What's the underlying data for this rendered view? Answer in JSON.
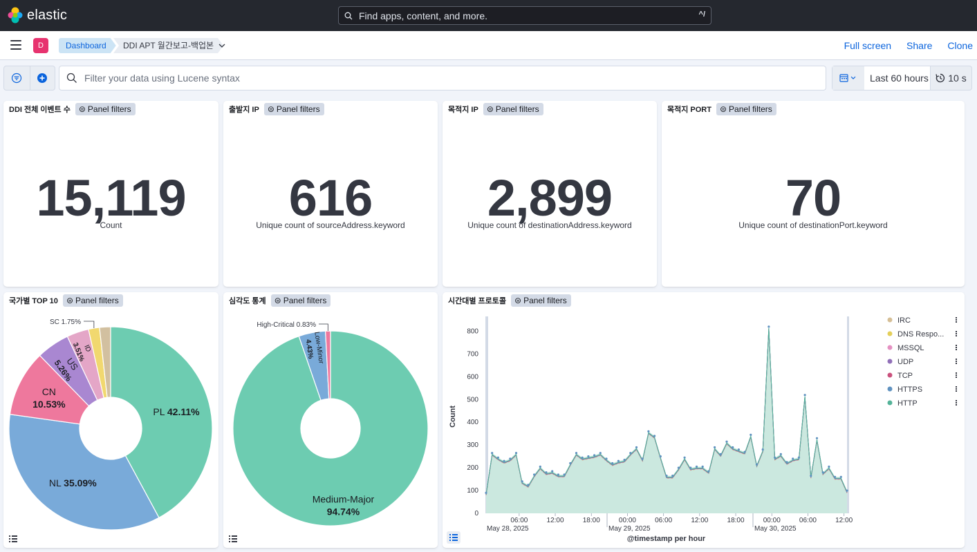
{
  "app": {
    "name": "elastic"
  },
  "search": {
    "placeholder": "Find apps, content, and more.",
    "shortcut": "^/"
  },
  "nav": {
    "avatar_letter": "D",
    "breadcrumbs": [
      "Dashboard",
      "DDI APT 월간보고-백업본"
    ],
    "links": [
      "Full screen",
      "Share",
      "Clone"
    ]
  },
  "query": {
    "placeholder": "Filter your data using Lucene syntax",
    "time_range": "Last 60 hours",
    "refresh": "10 s"
  },
  "filter_badge": "Panel filters",
  "metrics": [
    {
      "title": "DDI 전체 이벤트 수",
      "value": "15,119",
      "label": "Count"
    },
    {
      "title": "출발지 IP",
      "value": "616",
      "label": "Unique count of sourceAddress.keyword"
    },
    {
      "title": "목적지 IP",
      "value": "2,899",
      "label": "Unique count of destinationAddress.keyword"
    },
    {
      "title": "목적지 PORT",
      "value": "70",
      "label": "Unique count of destinationPort.keyword"
    }
  ],
  "country_panel": {
    "title": "국가별 TOP 10",
    "chart_data": {
      "type": "pie",
      "slices": [
        {
          "label": "PL",
          "value": 42.11,
          "pct": "42.11%",
          "color": "#6dccb1"
        },
        {
          "label": "NL",
          "value": 35.09,
          "pct": "35.09%",
          "color": "#79aad9"
        },
        {
          "label": "CN",
          "value": 10.53,
          "pct": "10.53%",
          "color": "#ee789d"
        },
        {
          "label": "US",
          "value": 5.26,
          "pct": "5.26%",
          "color": "#a987d1"
        },
        {
          "label": "ID",
          "value": 3.51,
          "pct": "3.51%",
          "color": "#e4a6c7"
        },
        {
          "label": "SC",
          "value": 1.75,
          "pct": "1.75%",
          "color": "#f1d86f"
        },
        {
          "label": "",
          "value": 1.75,
          "pct": "",
          "color": "#d2c0a0"
        }
      ]
    }
  },
  "severity_panel": {
    "title": "심각도 통계",
    "chart_data": {
      "type": "pie",
      "slices": [
        {
          "label": "Medium-Major",
          "value": 94.74,
          "pct": "94.74%",
          "color": "#6dccb1"
        },
        {
          "label": "Low-Minor",
          "value": 4.43,
          "pct": "4.43%",
          "color": "#79aad9"
        },
        {
          "label": "High-Critical",
          "value": 0.83,
          "pct": "0.83%",
          "color": "#ee789d"
        }
      ]
    }
  },
  "timeline_panel": {
    "title": "시간대별 프로토콜",
    "chart_data": {
      "type": "area",
      "ylabel": "Count",
      "xlabel": "@timestamp per hour",
      "ylim": [
        0,
        850
      ],
      "yticks": [
        "0",
        "100",
        "200",
        "300",
        "400",
        "500",
        "600",
        "700",
        "800"
      ],
      "xticks": [
        "06:00",
        "12:00",
        "18:00",
        "00:00",
        "06:00",
        "12:00",
        "18:00",
        "00:00",
        "06:00",
        "12:00"
      ],
      "date_labels": [
        "May 28, 2025",
        "May 29, 2025",
        "May 30, 2025"
      ],
      "legend": [
        {
          "name": "IRC",
          "color": "#d6bf96"
        },
        {
          "name": "DNS Respo...",
          "color": "#e4cf5a"
        },
        {
          "name": "MSSQL",
          "color": "#e591c2"
        },
        {
          "name": "UDP",
          "color": "#9170b8"
        },
        {
          "name": "TCP",
          "color": "#ca517d"
        },
        {
          "name": "HTTPS",
          "color": "#6092c0"
        },
        {
          "name": "HTTP",
          "color": "#54b399"
        }
      ],
      "series_total": [
        90,
        265,
        245,
        230,
        240,
        265,
        140,
        125,
        170,
        205,
        180,
        185,
        170,
        170,
        220,
        265,
        245,
        250,
        255,
        265,
        240,
        220,
        230,
        235,
        265,
        290,
        240,
        360,
        340,
        250,
        165,
        165,
        200,
        245,
        200,
        205,
        205,
        185,
        290,
        260,
        315,
        290,
        280,
        270,
        345,
        215,
        280,
        820,
        245,
        260,
        225,
        240,
        245,
        520,
        165,
        330,
        180,
        205,
        160,
        160,
        100
      ]
    }
  }
}
